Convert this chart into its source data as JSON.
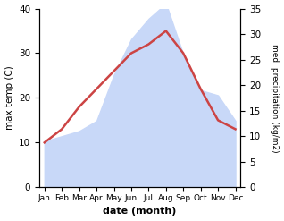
{
  "months": [
    "Jan",
    "Feb",
    "Mar",
    "Apr",
    "May",
    "Jun",
    "Jul",
    "Aug",
    "Sep",
    "Oct",
    "Nov",
    "Dec"
  ],
  "temperature": [
    10,
    13,
    18,
    22,
    26,
    30,
    32,
    35,
    30,
    22,
    15,
    13
  ],
  "precipitation": [
    9,
    10,
    11,
    13,
    22,
    29,
    33,
    36,
    26,
    19,
    18,
    13
  ],
  "temp_color": "#cc4444",
  "precip_fill_color": "#c8d8f8",
  "precip_edge_color": "#c8d8f8",
  "xlabel": "date (month)",
  "ylabel_left": "max temp (C)",
  "ylabel_right": "med. precipitation (kg/m2)",
  "ylim_left": [
    0,
    40
  ],
  "ylim_right": [
    0,
    35
  ],
  "yticks_left": [
    0,
    10,
    20,
    30,
    40
  ],
  "yticks_right": [
    0,
    5,
    10,
    15,
    20,
    25,
    30,
    35
  ],
  "bg_color": "#ffffff",
  "line_width": 1.8
}
